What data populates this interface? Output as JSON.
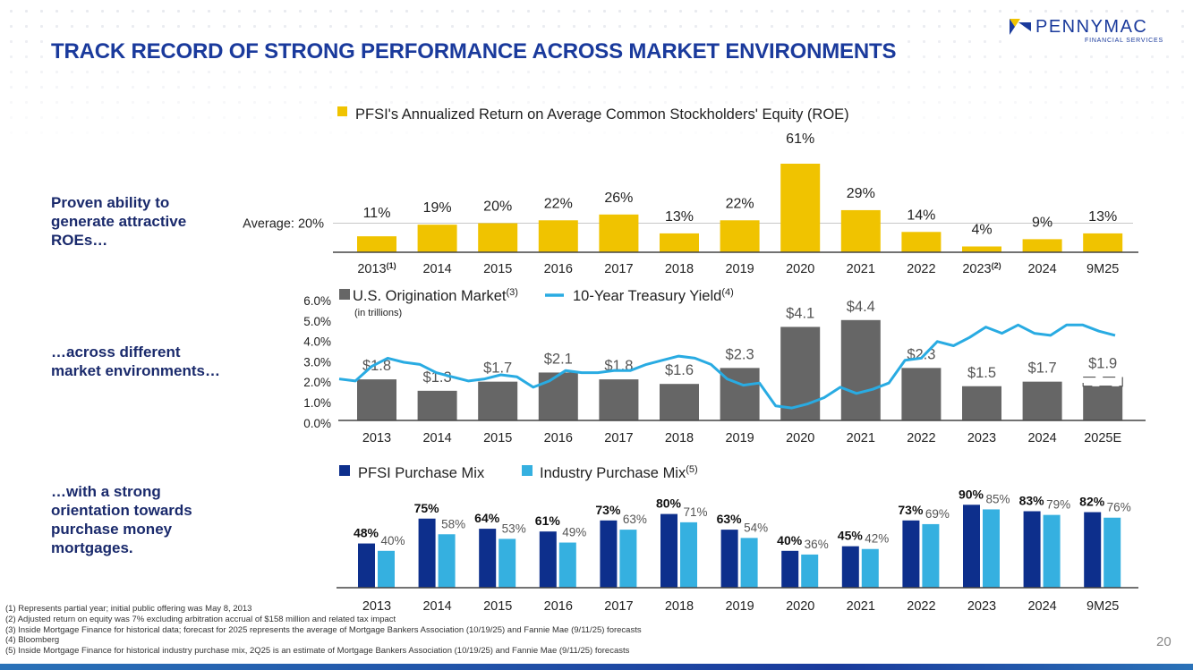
{
  "title": "TRACK RECORD OF STRONG PERFORMANCE ACROSS MARKET ENVIRONMENTS",
  "logo": {
    "name": "PENNYMAC",
    "sub": "FINANCIAL SERVICES",
    "reg": "®"
  },
  "side_labels": [
    "Proven ability to\ngenerate attractive\nROEs…",
    "…across different\nmarket environments…",
    "…with a strong\norientation towards\npurchase money\nmortgages."
  ],
  "colors": {
    "title": "#1a3a9c",
    "gold": "#f0c300",
    "gray": "#666666",
    "cyan": "#29abe2",
    "navy": "#0d2f8c",
    "lightblue": "#35b0e0"
  },
  "chart_data": [
    {
      "type": "bar",
      "title": "PFSI's Annualized Return on Average Common Stockholders' Equity (ROE)",
      "categories": [
        "2013",
        "2014",
        "2015",
        "2016",
        "2017",
        "2018",
        "2019",
        "2020",
        "2021",
        "2022",
        "2023",
        "2024",
        "9M25"
      ],
      "category_notes": {
        "0": "(1)",
        "10": "(2)"
      },
      "values": [
        11,
        19,
        20,
        22,
        26,
        13,
        22,
        61,
        29,
        14,
        4,
        9,
        13
      ],
      "labels": [
        "11%",
        "19%",
        "20%",
        "22%",
        "26%",
        "13%",
        "22%",
        "61%",
        "29%",
        "14%",
        "4%",
        "9%",
        "13%"
      ],
      "average_label": "Average: 20%",
      "average": 20
    },
    {
      "type": "bar+line",
      "legend": [
        {
          "name": "U.S. Origination Market",
          "note": "(3)",
          "sub": "(in trillions)"
        },
        {
          "name": "10-Year Treasury Yield",
          "note": "(4)"
        }
      ],
      "categories": [
        "2013",
        "2014",
        "2015",
        "2016",
        "2017",
        "2018",
        "2019",
        "2020",
        "2021",
        "2022",
        "2023",
        "2024",
        "2025E"
      ],
      "bar_values": [
        1.8,
        1.3,
        1.7,
        2.1,
        1.8,
        1.6,
        2.3,
        4.1,
        4.4,
        2.3,
        1.5,
        1.7,
        1.9
      ],
      "bar_labels": [
        "$1.8",
        "$1.3",
        "$1.7",
        "$2.1",
        "$1.8",
        "$1.6",
        "$2.3",
        "$4.1",
        "$4.4",
        "$2.3",
        "$1.5",
        "$1.7",
        "$1.9"
      ],
      "y_ticks": [
        "6.0%",
        "5.0%",
        "4.0%",
        "3.0%",
        "2.0%",
        "1.0%",
        "0.0%"
      ],
      "ylim": [
        0,
        6
      ],
      "treasury_yield": [
        2.0,
        1.9,
        2.6,
        3.0,
        2.8,
        2.7,
        2.3,
        2.1,
        1.9,
        2.0,
        2.2,
        2.1,
        1.6,
        1.9,
        2.4,
        2.3,
        2.3,
        2.4,
        2.4,
        2.7,
        2.9,
        3.1,
        3.0,
        2.7,
        2.0,
        1.7,
        1.8,
        0.7,
        0.6,
        0.8,
        1.1,
        1.6,
        1.3,
        1.5,
        1.8,
        2.9,
        3.0,
        3.8,
        3.6,
        4.0,
        4.5,
        4.2,
        4.6,
        4.2,
        4.1,
        4.6,
        4.6,
        4.3,
        4.1
      ]
    },
    {
      "type": "grouped-bar",
      "legend": [
        {
          "name": "PFSI Purchase Mix"
        },
        {
          "name": "Industry Purchase Mix",
          "note": "(5)"
        }
      ],
      "categories": [
        "2013",
        "2014",
        "2015",
        "2016",
        "2017",
        "2018",
        "2019",
        "2020",
        "2021",
        "2022",
        "2023",
        "2024",
        "9M25"
      ],
      "series": [
        {
          "name": "PFSI Purchase Mix",
          "values": [
            48,
            75,
            64,
            61,
            73,
            80,
            63,
            40,
            45,
            73,
            90,
            83,
            82
          ],
          "labels": [
            "48%",
            "75%",
            "64%",
            "61%",
            "73%",
            "80%",
            "63%",
            "40%",
            "45%",
            "73%",
            "90%",
            "83%",
            "82%"
          ]
        },
        {
          "name": "Industry Purchase Mix",
          "values": [
            40,
            58,
            53,
            49,
            63,
            71,
            54,
            36,
            42,
            69,
            85,
            79,
            76
          ],
          "labels": [
            "40%",
            "58%",
            "53%",
            "49%",
            "63%",
            "71%",
            "54%",
            "36%",
            "42%",
            "69%",
            "85%",
            "79%",
            "76%"
          ]
        }
      ]
    }
  ],
  "footnotes": [
    "(1) Represents partial year; initial public offering was May 8, 2013",
    "(2) Adjusted return on equity was 7% excluding arbitration accrual of $158 million and related tax impact",
    "(3) Inside Mortgage Finance for historical data; forecast for 2025 represents the average of Mortgage Bankers Association (10/19/25) and Fannie Mae (9/11/25) forecasts",
    "(4) Bloomberg",
    "(5) Inside Mortgage Finance for historical industry purchase mix, 2Q25 is an estimate of Mortgage Bankers Association (10/19/25) and Fannie Mae (9/11/25) forecasts"
  ],
  "page_number": "20"
}
